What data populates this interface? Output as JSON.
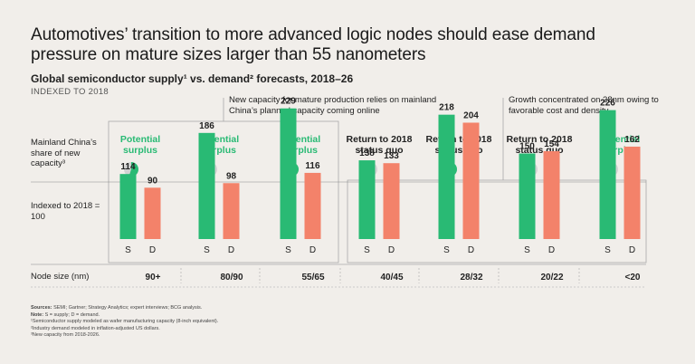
{
  "title": "Automotives’ transition to more advanced logic nodes should ease demand pressure on mature sizes larger than 55 nanometers",
  "subtitle": "Global semiconductor supply¹ vs. demand² forecasts, 2018–26",
  "indexed_label": "INDEXED TO 2018",
  "note_mature": "New capacity for mature production relies on mainland China’s planned capacity coming online",
  "note_growth": "Growth concentrated on 28nm owing to favorable cost and density",
  "row_labels": {
    "china_share": "Mainland China’s share of new capacity³",
    "indexed": "Indexed to 2018 = 100",
    "node_size": "Node size (nm)"
  },
  "colors": {
    "supply": "#29ba74",
    "demand": "#f3826a",
    "pie_bg": "#d2d2d2",
    "pie_fill": "#29ba74",
    "accent_text": "#29ba74"
  },
  "chart_data": {
    "type": "bar",
    "categories": [
      "90+",
      "80/90",
      "55/65",
      "40/45",
      "28/32",
      "20/22",
      "<20"
    ],
    "status_labels": [
      "Potential surplus",
      "Potential surplus",
      "Potential surplus",
      "Return to 2018 status quo",
      "Return to 2018 status quo",
      "Return to 2018 status quo",
      "Potential surplus"
    ],
    "status_type": [
      "surplus",
      "surplus",
      "surplus",
      "statusquo",
      "statusquo",
      "statusquo",
      "surplus"
    ],
    "series": [
      {
        "name": "S",
        "values": [
          114,
          186,
          229,
          138,
          218,
          150,
          226
        ]
      },
      {
        "name": "D",
        "values": [
          90,
          98,
          116,
          133,
          204,
          154,
          162
        ]
      }
    ],
    "china_share_fraction": [
      0.55,
      0.08,
      1.0,
      0.1,
      0.45,
      0.0,
      0.04
    ],
    "baseline": 100
  },
  "footnotes": [
    {
      "bold": "Sources: ",
      "text": "SEMI; Gartner; Strategy Analytics; expert interviews; BCG analysis."
    },
    {
      "bold": "Note: ",
      "text": "S = supply; D = demand."
    },
    {
      "bold": "",
      "text": "¹Semiconductor supply modeled as wafer manufacturing capacity (8-inch equivalent)."
    },
    {
      "bold": "",
      "text": "²Industry demand modeled in inflation-adjusted US dollars."
    },
    {
      "bold": "",
      "text": "³New capacity from 2018-2026."
    }
  ]
}
